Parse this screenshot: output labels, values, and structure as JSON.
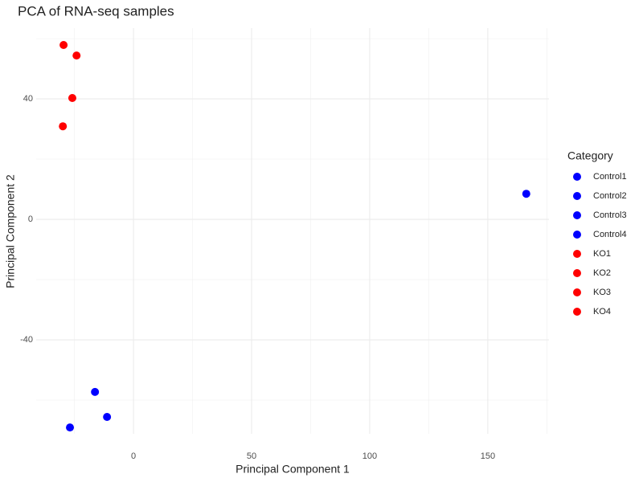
{
  "chart_data": {
    "type": "scatter",
    "title": "PCA of RNA-seq samples",
    "x_label": "Principal Component 1",
    "y_label": "Principal Component 2",
    "legend_title": "Category",
    "legend_position": "right",
    "grid": true,
    "xlim": [
      -41.2,
      175.9
    ],
    "ylim": [
      -71.2,
      63.5
    ],
    "xticks": [
      0,
      50,
      100,
      150
    ],
    "yticks": [
      -40,
      0,
      40
    ],
    "x_minor_ticks": [
      -25,
      25,
      75,
      125,
      175
    ],
    "y_minor_ticks": [
      -60,
      -20,
      20,
      60
    ],
    "series": [
      {
        "name": "Control1",
        "color": "#0000ff",
        "x": [
          166.3
        ],
        "values": [
          8.5
        ]
      },
      {
        "name": "Control2",
        "color": "#0000ff",
        "x": [
          -16.3
        ],
        "values": [
          -57.3
        ]
      },
      {
        "name": "Control3",
        "color": "#0000ff",
        "x": [
          -11.2
        ],
        "values": [
          -65.6
        ]
      },
      {
        "name": "Control4",
        "color": "#0000ff",
        "x": [
          -26.9
        ],
        "values": [
          -69.1
        ]
      },
      {
        "name": "KO1",
        "color": "#ff0000",
        "x": [
          -29.6
        ],
        "values": [
          57.9
        ]
      },
      {
        "name": "KO2",
        "color": "#ff0000",
        "x": [
          -24.1
        ],
        "values": [
          54.4
        ]
      },
      {
        "name": "KO3",
        "color": "#ff0000",
        "x": [
          -25.9
        ],
        "values": [
          40.3
        ]
      },
      {
        "name": "KO4",
        "color": "#ff0000",
        "x": [
          -29.9
        ],
        "values": [
          30.9
        ]
      }
    ]
  }
}
